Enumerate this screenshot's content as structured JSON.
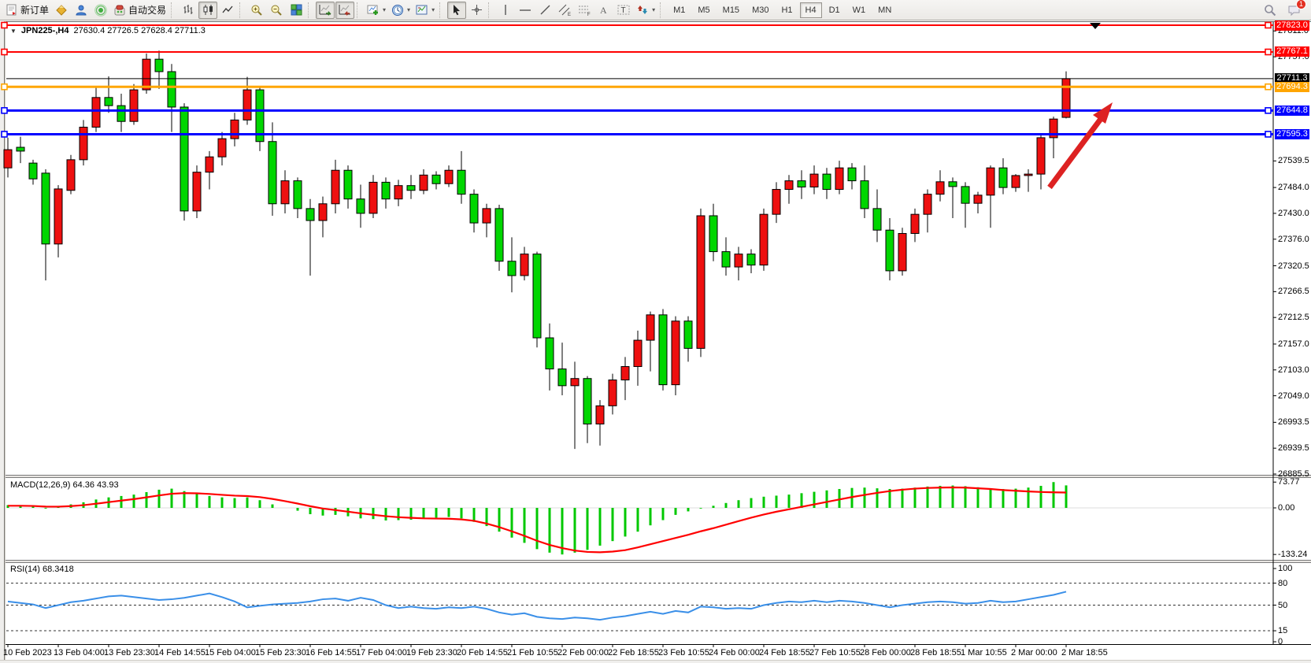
{
  "toolbar": {
    "new_order_label": "新订单",
    "autotrading_label": "自动交易",
    "timeframes": [
      "M1",
      "M5",
      "M15",
      "M30",
      "H1",
      "H4",
      "D1",
      "W1",
      "MN"
    ],
    "active_timeframe": "H4",
    "notification_count": "1"
  },
  "chart": {
    "dropdown_glyph": "▼",
    "title_symbol": "JPN225-,H4",
    "title_ohlc": "27630.4 27726.5 27628.4 27711.3"
  },
  "price_axis": {
    "plain_ticks": [
      27811.0,
      27757.0,
      27539.5,
      27484.0,
      27430.0,
      27376.0,
      27320.5,
      27266.5,
      27212.5,
      27157.0,
      27103.0,
      27049.0,
      26993.5,
      26939.5,
      26885.5
    ],
    "badges": [
      {
        "value": "27823.0",
        "bg": "#ff0000"
      },
      {
        "value": "27767.1",
        "bg": "#ff0000"
      },
      {
        "value": "27711.3",
        "bg": "#000000"
      },
      {
        "value": "27694.3",
        "bg": "#ffa500"
      },
      {
        "value": "27644.8",
        "bg": "#0000ff"
      },
      {
        "value": "27595.3",
        "bg": "#0000ff"
      }
    ]
  },
  "hlines": [
    {
      "price": 27823.0,
      "color": "#ff0000",
      "width": 2
    },
    {
      "price": 27767.1,
      "color": "#ff0000",
      "width": 2
    },
    {
      "price": 27694.3,
      "color": "#ffa500",
      "width": 3
    },
    {
      "price": 27644.8,
      "color": "#0000ff",
      "width": 3
    },
    {
      "price": 27595.3,
      "color": "#0000ff",
      "width": 3
    }
  ],
  "current_price": {
    "value": 27711.3,
    "line_color": "#000000"
  },
  "chart_data": {
    "type": "candlestick",
    "symbol": "JPN225-",
    "timeframe": "H4",
    "price_range": [
      26885.5,
      27823.0
    ],
    "up_color": "#ee1010",
    "down_color": "#00d600",
    "bars": [
      [
        27525,
        27588,
        27505,
        27563
      ],
      [
        27568,
        27590,
        27535,
        27560
      ],
      [
        27535,
        27542,
        27490,
        27502
      ],
      [
        27514,
        27522,
        27290,
        27366
      ],
      [
        27366,
        27489,
        27338,
        27481
      ],
      [
        27478,
        27552,
        27470,
        27542
      ],
      [
        27542,
        27625,
        27530,
        27610
      ],
      [
        27610,
        27695,
        27600,
        27672
      ],
      [
        27672,
        27716,
        27640,
        27655
      ],
      [
        27655,
        27680,
        27600,
        27622
      ],
      [
        27622,
        27700,
        27615,
        27688
      ],
      [
        27688,
        27764,
        27680,
        27752
      ],
      [
        27752,
        27770,
        27690,
        27726
      ],
      [
        27726,
        27742,
        27600,
        27652
      ],
      [
        27652,
        27660,
        27415,
        27435
      ],
      [
        27435,
        27530,
        27420,
        27516
      ],
      [
        27516,
        27560,
        27480,
        27548
      ],
      [
        27548,
        27600,
        27530,
        27586
      ],
      [
        27586,
        27640,
        27570,
        27625
      ],
      [
        27625,
        27715,
        27615,
        27688
      ],
      [
        27688,
        27695,
        27560,
        27580
      ],
      [
        27580,
        27620,
        27425,
        27450
      ],
      [
        27450,
        27520,
        27430,
        27498
      ],
      [
        27498,
        27505,
        27420,
        27440
      ],
      [
        27440,
        27460,
        27300,
        27415
      ],
      [
        27415,
        27465,
        27380,
        27450
      ],
      [
        27450,
        27542,
        27430,
        27520
      ],
      [
        27520,
        27530,
        27440,
        27460
      ],
      [
        27460,
        27490,
        27400,
        27430
      ],
      [
        27430,
        27510,
        27420,
        27495
      ],
      [
        27495,
        27505,
        27440,
        27460
      ],
      [
        27460,
        27500,
        27445,
        27488
      ],
      [
        27488,
        27510,
        27460,
        27478
      ],
      [
        27478,
        27522,
        27470,
        27510
      ],
      [
        27510,
        27518,
        27480,
        27492
      ],
      [
        27492,
        27530,
        27485,
        27520
      ],
      [
        27520,
        27560,
        27450,
        27470
      ],
      [
        27470,
        27480,
        27390,
        27410
      ],
      [
        27410,
        27450,
        27380,
        27440
      ],
      [
        27440,
        27448,
        27310,
        27330
      ],
      [
        27330,
        27380,
        27265,
        27300
      ],
      [
        27300,
        27360,
        27290,
        27345
      ],
      [
        27345,
        27350,
        27150,
        27170
      ],
      [
        27170,
        27200,
        27060,
        27105
      ],
      [
        27105,
        27160,
        27050,
        27070
      ],
      [
        27070,
        27120,
        26938,
        27085
      ],
      [
        27085,
        27090,
        26950,
        26990
      ],
      [
        26990,
        27040,
        26945,
        27028
      ],
      [
        27028,
        27095,
        27010,
        27082
      ],
      [
        27082,
        27130,
        27040,
        27110
      ],
      [
        27110,
        27185,
        27070,
        27165
      ],
      [
        27165,
        27225,
        27100,
        27218
      ],
      [
        27218,
        27230,
        27060,
        27072
      ],
      [
        27072,
        27215,
        27050,
        27205
      ],
      [
        27205,
        27215,
        27120,
        27148
      ],
      [
        27148,
        27440,
        27130,
        27425
      ],
      [
        27425,
        27450,
        27330,
        27350
      ],
      [
        27350,
        27380,
        27300,
        27318
      ],
      [
        27318,
        27360,
        27290,
        27345
      ],
      [
        27345,
        27355,
        27305,
        27322
      ],
      [
        27322,
        27440,
        27310,
        27428
      ],
      [
        27428,
        27495,
        27410,
        27480
      ],
      [
        27480,
        27510,
        27450,
        27498
      ],
      [
        27498,
        27520,
        27460,
        27485
      ],
      [
        27485,
        27530,
        27470,
        27512
      ],
      [
        27512,
        27525,
        27460,
        27480
      ],
      [
        27480,
        27540,
        27470,
        27525
      ],
      [
        27525,
        27535,
        27480,
        27498
      ],
      [
        27498,
        27530,
        27420,
        27440
      ],
      [
        27440,
        27480,
        27370,
        27395
      ],
      [
        27395,
        27420,
        27290,
        27310
      ],
      [
        27310,
        27400,
        27300,
        27388
      ],
      [
        27388,
        27440,
        27370,
        27428
      ],
      [
        27428,
        27480,
        27390,
        27470
      ],
      [
        27470,
        27520,
        27455,
        27496
      ],
      [
        27496,
        27505,
        27420,
        27486
      ],
      [
        27486,
        27495,
        27400,
        27451
      ],
      [
        27451,
        27475,
        27430,
        27468
      ],
      [
        27468,
        27530,
        27400,
        27525
      ],
      [
        27525,
        27545,
        27470,
        27484
      ],
      [
        27484,
        27512,
        27475,
        27509
      ],
      [
        27509,
        27522,
        27475,
        27512
      ],
      [
        27512,
        27595,
        27480,
        27588
      ],
      [
        27588,
        27632,
        27545,
        27627
      ],
      [
        27630.4,
        27726.5,
        27628.4,
        27711.3
      ]
    ],
    "x_labels": [
      "10 Feb 2023",
      "13 Feb 04:00",
      "13 Feb 23:30",
      "14 Feb 14:55",
      "15 Feb 04:00",
      "15 Feb 23:30",
      "16 Feb 14:55",
      "17 Feb 04:00",
      "19 Feb 23:30",
      "20 Feb 14:55",
      "21 Feb 10:55",
      "22 Feb 00:00",
      "22 Feb 18:55",
      "23 Feb 10:55",
      "24 Feb 00:00",
      "24 Feb 18:55",
      "27 Feb 10:55",
      "28 Feb 00:00",
      "28 Feb 18:55",
      "1 Mar 10:55",
      "2 Mar 00:00",
      "2 Mar 18:55"
    ],
    "bars_per_label": 4
  },
  "macd": {
    "label": "MACD(12,26,9) 64.36 43.93",
    "value_main": 64.36,
    "value_signal": 43.93,
    "scale_labels": [
      "73.77",
      "0.00",
      "-133.24"
    ],
    "scale_values": [
      73.77,
      0,
      -133.24
    ],
    "histogram_color": "#00c800",
    "signal_color": "#ff0000",
    "histogram": [
      8,
      6,
      4,
      -2,
      3,
      10,
      16,
      24,
      30,
      34,
      38,
      45,
      52,
      55,
      48,
      40,
      34,
      30,
      28,
      30,
      22,
      10,
      0,
      -8,
      -18,
      -22,
      -20,
      -24,
      -30,
      -32,
      -36,
      -35,
      -34,
      -30,
      -28,
      -26,
      -30,
      -40,
      -52,
      -68,
      -85,
      -100,
      -118,
      -128,
      -133.24,
      -128,
      -120,
      -108,
      -95,
      -82,
      -68,
      -50,
      -35,
      -20,
      -10,
      -2,
      6,
      14,
      22,
      28,
      32,
      35,
      38,
      42,
      46,
      50,
      54,
      57,
      58,
      56,
      54,
      55,
      58,
      61,
      63,
      64,
      62,
      59,
      56,
      54,
      55,
      58,
      63,
      73.77,
      64.36
    ],
    "signal": [
      6,
      6,
      5.5,
      3.6,
      3.5,
      5.1,
      7.8,
      11.9,
      16.4,
      20.8,
      25.1,
      30.1,
      35.6,
      40.4,
      42.3,
      41.7,
      39.8,
      37.3,
      35,
      33.8,
      30.8,
      25.6,
      19.2,
      12.4,
      4.8,
      -1.9,
      -6.4,
      -10.8,
      -15.6,
      -19.7,
      -23.8,
      -26.6,
      -28.5,
      -30,
      -30.5,
      -31,
      -33,
      -37,
      -45,
      -55,
      -67,
      -80,
      -94,
      -106,
      -115,
      -122,
      -126,
      -127,
      -125,
      -121,
      -113,
      -104,
      -95,
      -86,
      -77,
      -67,
      -58,
      -48,
      -38,
      -28,
      -19,
      -11,
      -4,
      3,
      10,
      17,
      24,
      31,
      37,
      43,
      48,
      52,
      55,
      57,
      58,
      58.5,
      58,
      56,
      54,
      51,
      49,
      47,
      45.5,
      44.5,
      43.93
    ]
  },
  "rsi": {
    "label": "RSI(14) 68.3418",
    "value": 68.3418,
    "scale_labels": [
      "100",
      "80",
      "50",
      "15",
      "0"
    ],
    "scale_values": [
      100,
      80,
      50,
      15,
      0
    ],
    "levels": [
      80,
      50,
      15
    ],
    "line_color": "#3a8fe8",
    "values": [
      55,
      53,
      51,
      46,
      50,
      54,
      56,
      59,
      62,
      63,
      61,
      59,
      57,
      58,
      60,
      63,
      66,
      61,
      55,
      47,
      49,
      51,
      52,
      53,
      55,
      58,
      59,
      56,
      60,
      57,
      50,
      46,
      48,
      46,
      45,
      47,
      46,
      48,
      45,
      40,
      37,
      39,
      34,
      32,
      31,
      33,
      32,
      30,
      33,
      35,
      38,
      41,
      38,
      42,
      40,
      48,
      47,
      45,
      46,
      45,
      50,
      53,
      55,
      54,
      56,
      54,
      56,
      55,
      53,
      50,
      47,
      50,
      52,
      54,
      55,
      54,
      52,
      53,
      56,
      54,
      55,
      58,
      61,
      64,
      68.34
    ]
  },
  "annotations": {
    "arrow_color": "#dd2222",
    "marker_color": "#000000"
  }
}
